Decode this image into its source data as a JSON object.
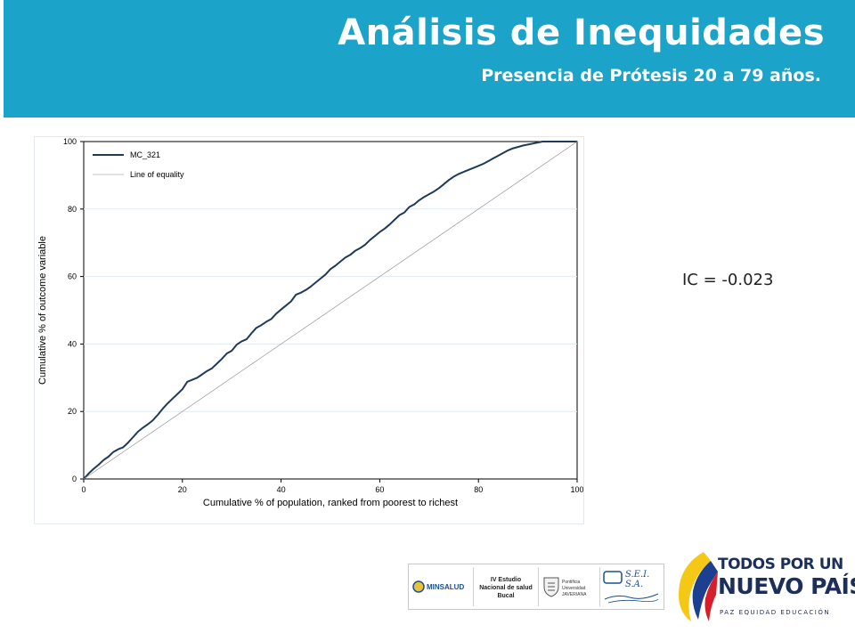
{
  "header": {
    "title": "Análisis de Inequidades",
    "subtitle": "Presencia de Prótesis 20 a 79 años."
  },
  "ic_text": "IC = -0.023",
  "chart_data": {
    "type": "line",
    "xlabel": "Cumulative % of population, ranked from poorest to richest",
    "ylabel": "Cumulative % of outcome variable",
    "xlim": [
      0,
      100
    ],
    "ylim": [
      0,
      100
    ],
    "x_ticks": [
      "0",
      "20",
      "40",
      "60",
      "80",
      "100"
    ],
    "y_ticks": [
      "0",
      "20",
      "40",
      "60",
      "80",
      "100"
    ],
    "grid": "horizontal",
    "legend_position": "top-left",
    "series": [
      {
        "name": "MC_321",
        "color": "#1f3b5a",
        "x": [
          0,
          1,
          2,
          3,
          4,
          5,
          6,
          7,
          8,
          9,
          10,
          11,
          12,
          13,
          14,
          15,
          16,
          17,
          18,
          19,
          20,
          21,
          22,
          23,
          24,
          25,
          26,
          27,
          28,
          29,
          30,
          31,
          32,
          33,
          34,
          35,
          36,
          37,
          38,
          39,
          40,
          41,
          42,
          43,
          44,
          45,
          46,
          47,
          48,
          49,
          50,
          51,
          52,
          53,
          54,
          55,
          56,
          57,
          58,
          59,
          60,
          61,
          62,
          63,
          64,
          65,
          66,
          67,
          68,
          69,
          70,
          71,
          72,
          73,
          74,
          75,
          76,
          77,
          78,
          79,
          80,
          81,
          82,
          83,
          84,
          85,
          86,
          87,
          88,
          89,
          90,
          91,
          92,
          93,
          94,
          95,
          96,
          97,
          98,
          99,
          100
        ],
        "y": [
          0,
          1.6,
          3.0,
          4.2,
          5.6,
          6.6,
          8.0,
          8.8,
          9.4,
          10.8,
          12.4,
          14.0,
          15.2,
          16.2,
          17.4,
          19.0,
          20.8,
          22.4,
          23.8,
          25.2,
          26.6,
          28.8,
          29.4,
          30.0,
          31.0,
          32.0,
          32.8,
          34.2,
          35.6,
          37.2,
          38.0,
          39.8,
          40.8,
          41.4,
          43.2,
          44.8,
          45.6,
          46.6,
          47.4,
          49.0,
          50.2,
          51.4,
          52.6,
          54.6,
          55.2,
          56.0,
          57.0,
          58.2,
          59.4,
          60.6,
          62.2,
          63.2,
          64.4,
          65.6,
          66.4,
          67.6,
          68.4,
          69.4,
          70.8,
          72.0,
          73.2,
          74.2,
          75.4,
          76.8,
          78.2,
          79.0,
          80.6,
          81.4,
          82.6,
          83.6,
          84.4,
          85.2,
          86.2,
          87.4,
          88.6,
          89.6,
          90.4,
          91.0,
          91.6,
          92.2,
          92.8,
          93.4,
          94.2,
          95.0,
          95.8,
          96.6,
          97.4,
          98.0,
          98.4,
          98.8,
          99.1,
          99.4,
          99.7,
          100,
          100,
          100,
          100,
          100,
          100,
          100,
          100
        ]
      },
      {
        "name": "Line of equality",
        "color": "#8a8a8a",
        "x": [
          0,
          100
        ],
        "y": [
          0,
          100
        ]
      }
    ]
  },
  "logos": {
    "minsalud": "MINSALUD",
    "estudio": "IV Estudio Nacional de salud Bucal",
    "javeriana": "Pontificia Universidad JAVERIANA",
    "sei": "S.E.I. S.A.",
    "campaign_line1": "TODOS POR UN",
    "campaign_line2": "NUEVO PAÍS",
    "campaign_line3": "PAZ  EQUIDAD  EDUCACIÓN"
  }
}
